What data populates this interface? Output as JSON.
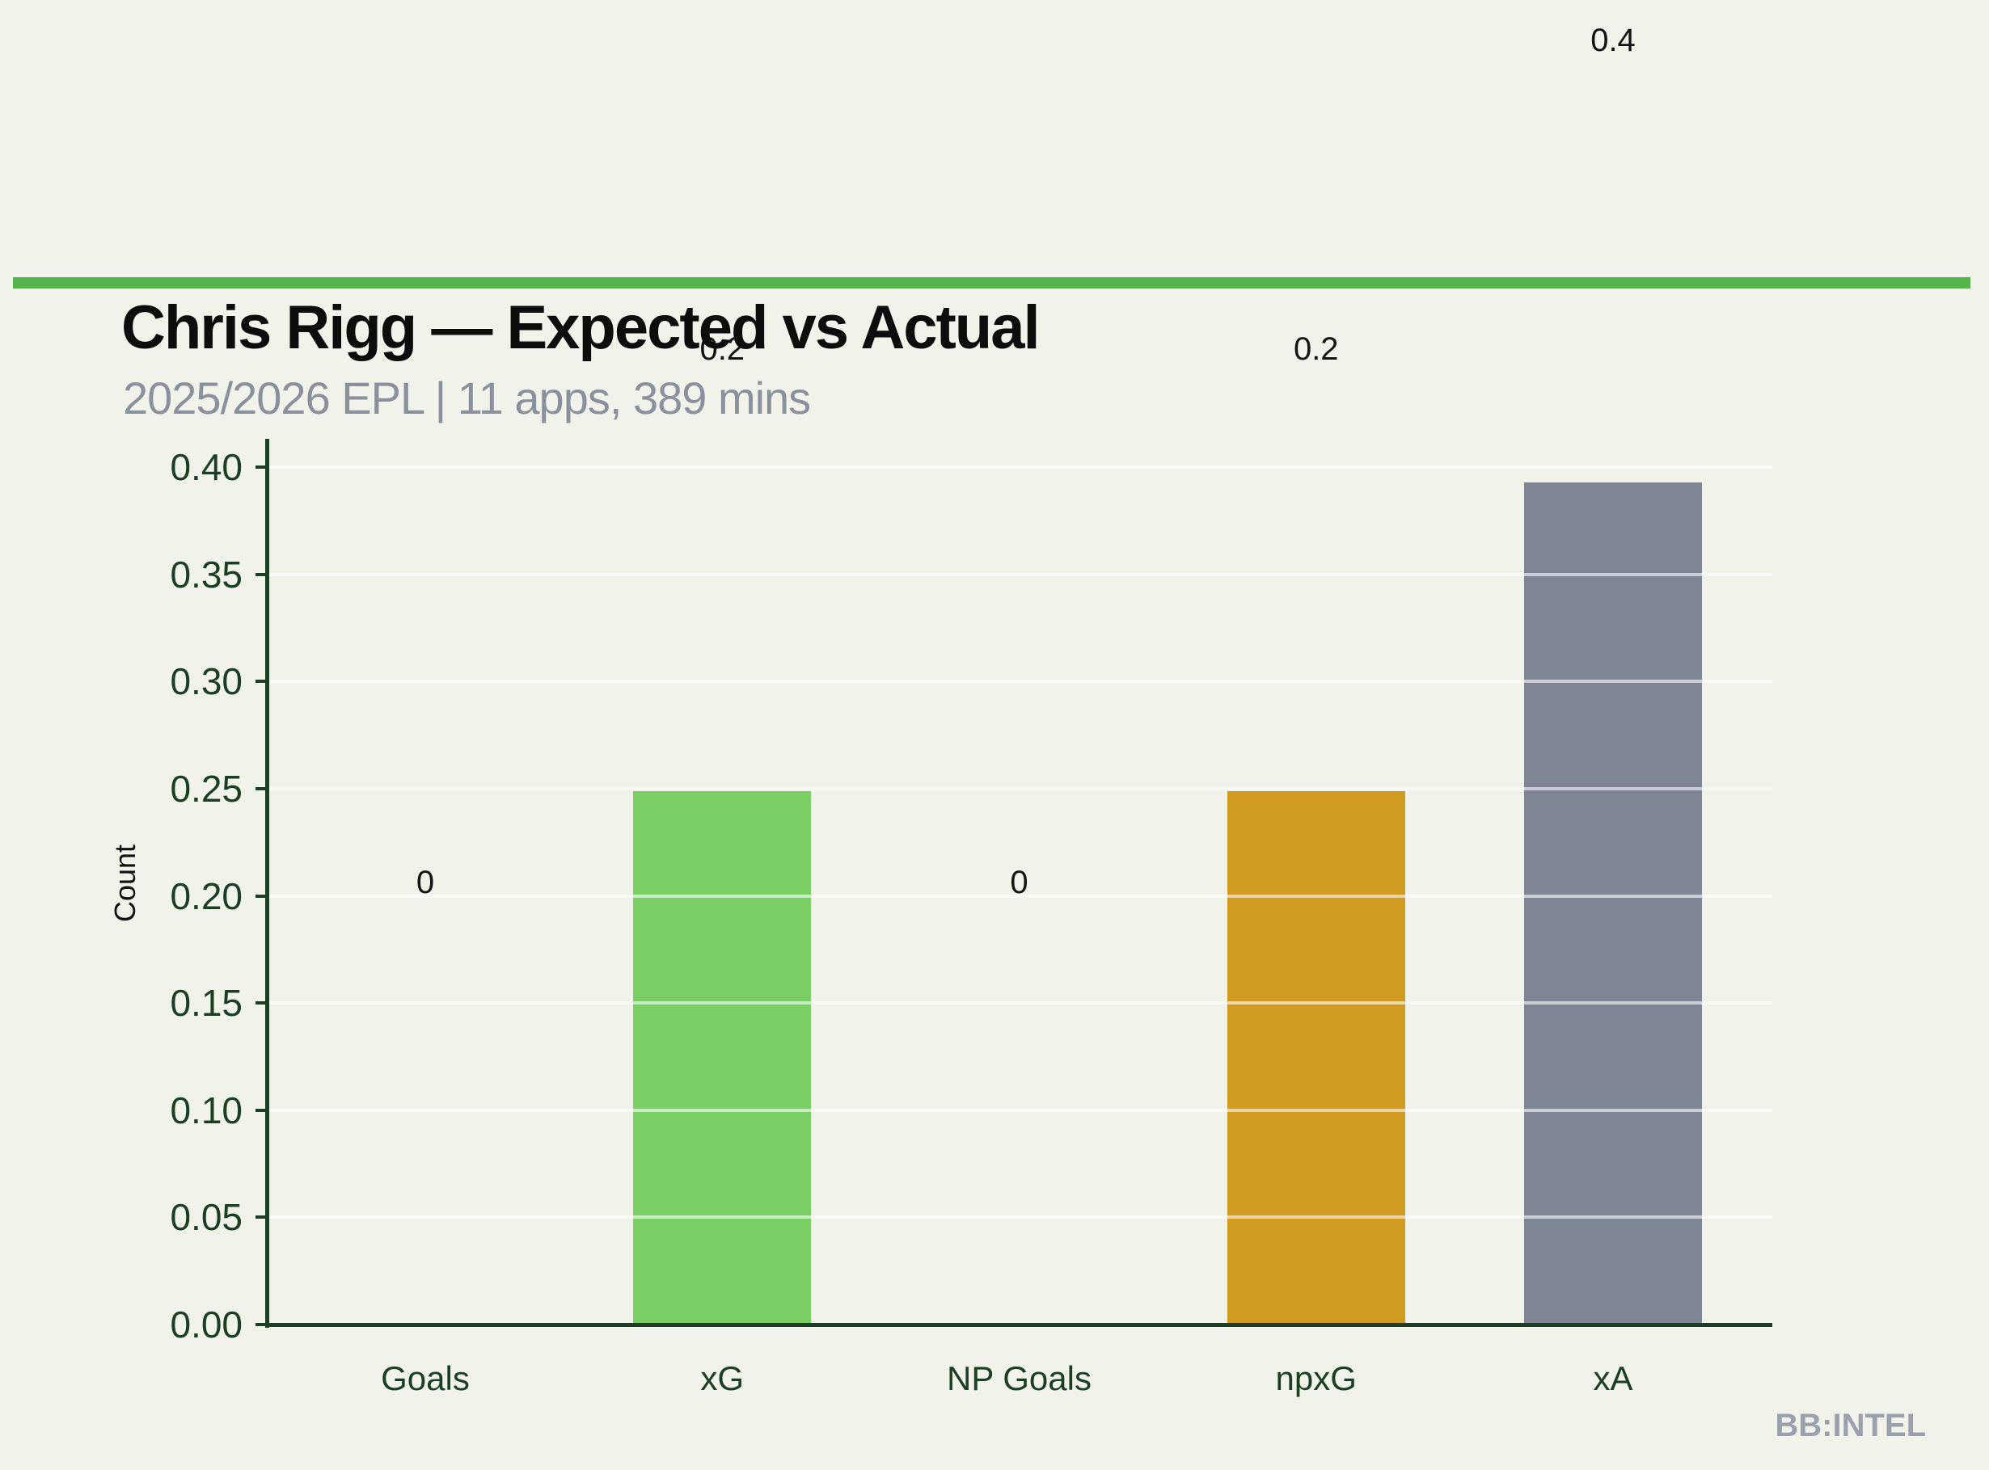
{
  "header": {
    "title": "Chris Rigg — Expected vs Actual",
    "subtitle": "2025/2026 EPL | 11 apps, 389 mins"
  },
  "chart_data": {
    "type": "bar",
    "title": "Chris Rigg — Expected vs Actual",
    "subtitle": "2025/2026 EPL | 11 apps, 389 mins",
    "xlabel": "",
    "ylabel": "Count",
    "categories": [
      "Goals",
      "xG",
      "NP Goals",
      "npxG",
      "xA"
    ],
    "values": [
      0,
      0.249,
      0,
      0.249,
      0.393
    ],
    "value_labels": [
      "0",
      "0.2",
      "0",
      "0.2",
      "0.4"
    ],
    "bar_colors": [
      "#7acf64",
      "#7acf64",
      "#d19a20",
      "#d19a20",
      "#7e8594"
    ],
    "yticks": [
      0,
      0.05,
      0.1,
      0.15,
      0.2,
      0.25,
      0.3,
      0.35,
      0.4
    ],
    "ytick_labels": [
      "0.00",
      "0.05",
      "0.10",
      "0.15",
      "0.20",
      "0.25",
      "0.30",
      "0.35",
      "0.40"
    ],
    "ylim": [
      0,
      0.4125
    ],
    "grid": "horizontal",
    "legend_position": "none",
    "annotation_note": "value labels are offset far above bar tops; the xG label 0.2 sits behind the title text"
  },
  "footer": {
    "brand": "BB:INTEL"
  },
  "style": {
    "background": "#f1f2e9",
    "accent_bar": "#56b44b",
    "axis_color": "#1b3e24",
    "title_color": "#0d0d0d",
    "subtitle_color": "#8a919d",
    "value_label_color": "#141414",
    "grid_color": "rgba(255,255,255,0.6)",
    "brand_color": "#9aa1ac"
  }
}
